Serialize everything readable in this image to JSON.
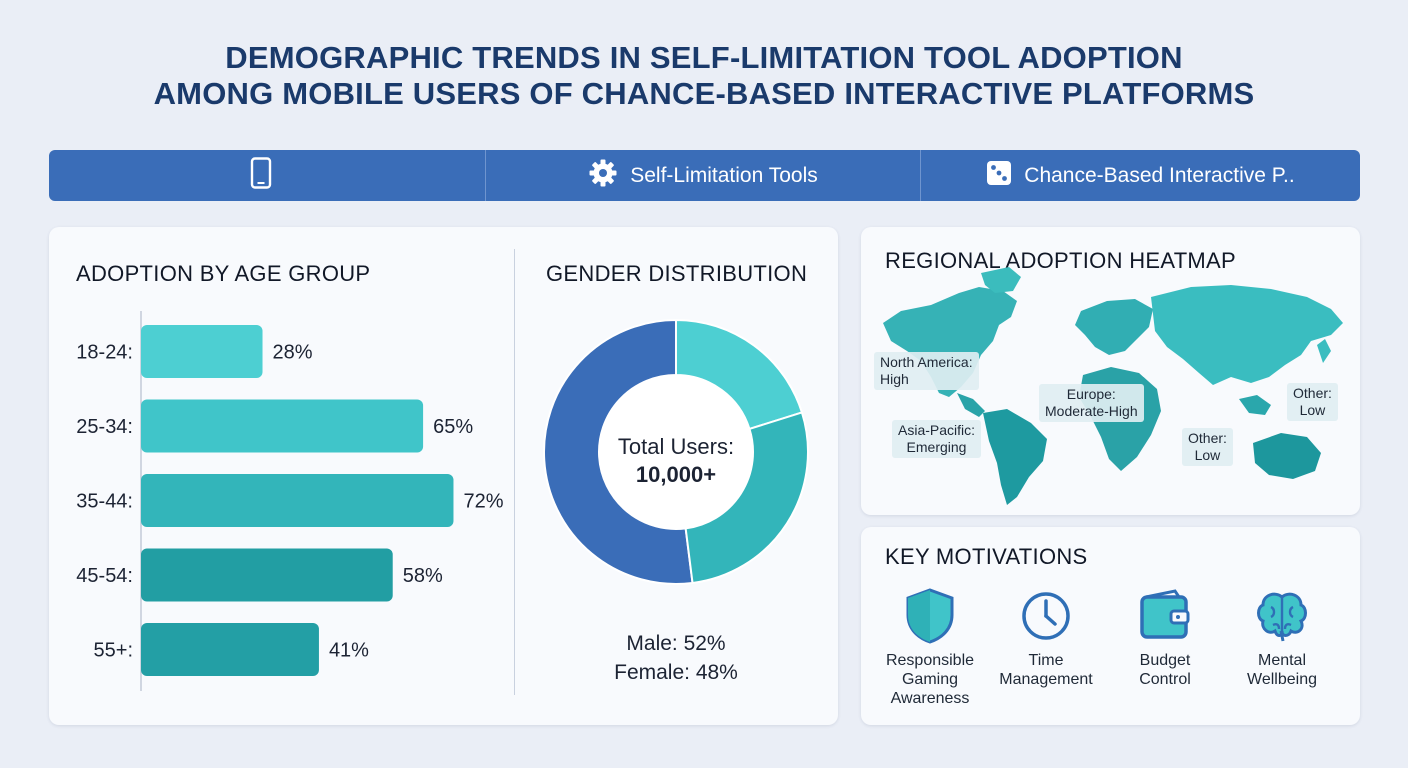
{
  "title": {
    "line1": "DEMOGRAPHIC TRENDS IN SELF-LIMITATION TOOL ADOPTION",
    "line2": "AMONG MOBILE USERS OF CHANCE-BASED INTERACTIVE PLATFORMS"
  },
  "tabs": [
    {
      "icon": "mobile-phone-icon",
      "label": ""
    },
    {
      "icon": "gear-icon",
      "label": "Self-Limitation Tools"
    },
    {
      "icon": "dice-icon",
      "label": "Chance-Based Interactive P.."
    }
  ],
  "colors": {
    "tab_bar": "#3a6db8",
    "bar_colors": [
      "#4dcfd2",
      "#40c5c9",
      "#33b5ba",
      "#229ea3",
      "#239fa5"
    ],
    "male": "#3a6db8",
    "female": "#40c4ca"
  },
  "chart_data": [
    {
      "type": "bar",
      "orientation": "horizontal",
      "title": "ADOPTION BY AGE GROUP",
      "categories": [
        "18-24:",
        "25-34:",
        "35-44:",
        "45-54:",
        "55+:"
      ],
      "values": [
        28,
        65,
        72,
        58,
        41
      ],
      "value_labels": [
        "28%",
        "65%",
        "72%",
        "58%",
        "41%"
      ],
      "xlim": [
        0,
        100
      ]
    },
    {
      "type": "pie",
      "donut": true,
      "title": "GENDER DISTRIBUTION",
      "center_label": "Total Users:",
      "center_value": "10,000+",
      "slices": [
        {
          "name": "Male",
          "value": 52
        },
        {
          "name": "Female",
          "value": 48
        }
      ],
      "legend": [
        "Male: 52%",
        "Female: 48%"
      ]
    }
  ],
  "map": {
    "title": "REGIONAL ADOPTION HEATMAP",
    "labels": [
      {
        "line1": "North America:",
        "line2": "High"
      },
      {
        "line1": "Europe:",
        "line2": "Moderate-High"
      },
      {
        "line1": "Asia-Pacific:",
        "line2": "Emerging"
      },
      {
        "line1": "Other:",
        "line2": "Low"
      },
      {
        "line1": "Other:",
        "line2": "Low"
      }
    ]
  },
  "motivations": {
    "title": "KEY MOTIVATIONS",
    "items": [
      {
        "icon": "shield-icon",
        "lines": [
          "Responsible",
          "Gaming",
          "Awareness"
        ]
      },
      {
        "icon": "clock-icon",
        "lines": [
          "Time",
          "Management"
        ]
      },
      {
        "icon": "wallet-icon",
        "lines": [
          "Budget",
          "Control"
        ]
      },
      {
        "icon": "brain-icon",
        "lines": [
          "Mental",
          "Wellbeing"
        ]
      }
    ]
  }
}
